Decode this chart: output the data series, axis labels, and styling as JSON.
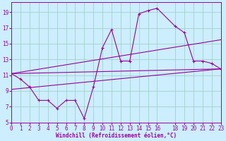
{
  "xlabel": "Windchill (Refroidissement éolien,°C)",
  "bg_color": "#cceeff",
  "grid_color": "#99ccbb",
  "line_color": "#990099",
  "xlim": [
    0,
    23
  ],
  "ylim": [
    5,
    20
  ],
  "yticks": [
    5,
    7,
    9,
    11,
    13,
    15,
    17,
    19
  ],
  "xticks": [
    0,
    1,
    2,
    3,
    4,
    5,
    6,
    7,
    8,
    9,
    10,
    11,
    12,
    13,
    14,
    15,
    16,
    18,
    19,
    20,
    21,
    22,
    23
  ],
  "main_line": {
    "x": [
      0,
      1,
      2,
      3,
      4,
      5,
      6,
      7,
      8,
      9,
      10,
      11,
      12,
      13,
      14,
      15,
      16,
      18,
      19,
      20,
      21,
      22,
      23
    ],
    "y": [
      11.2,
      10.5,
      9.5,
      7.8,
      7.8,
      6.8,
      7.8,
      7.8,
      5.5,
      9.5,
      14.5,
      16.8,
      12.8,
      12.8,
      18.8,
      19.2,
      19.5,
      17.2,
      16.4,
      12.8,
      12.8,
      12.5,
      11.8
    ]
  },
  "ref_lines": [
    {
      "x": [
        0,
        23
      ],
      "y": [
        11.2,
        11.8
      ]
    },
    {
      "x": [
        0,
        23
      ],
      "y": [
        11.2,
        15.5
      ]
    },
    {
      "x": [
        0,
        23
      ],
      "y": [
        9.2,
        11.8
      ]
    }
  ]
}
